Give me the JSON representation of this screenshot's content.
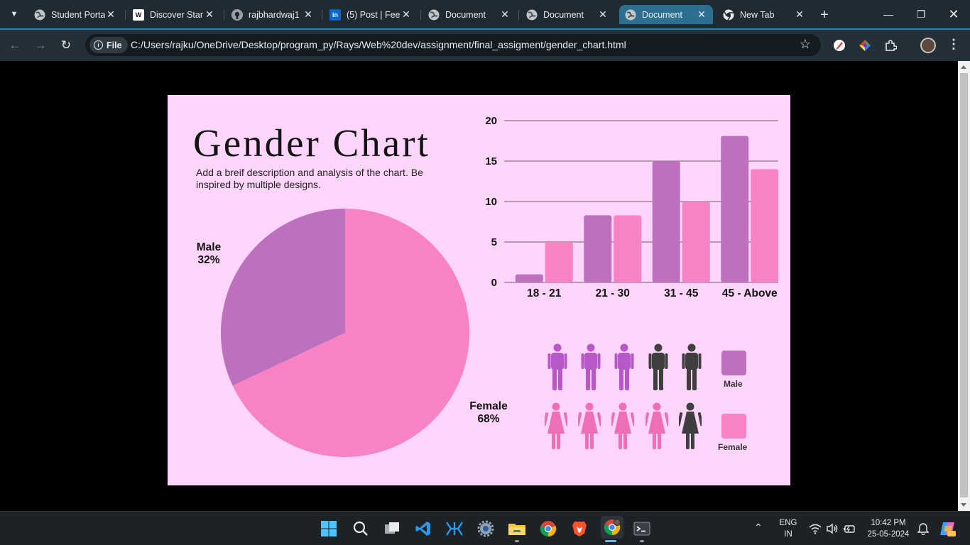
{
  "browser": {
    "tabs": [
      {
        "title": "Student Porta",
        "favicon": "globe-icon",
        "active": false
      },
      {
        "title": "Discover Star",
        "favicon": "W",
        "active": false
      },
      {
        "title": "rajbhardwaj1",
        "favicon": "github-icon",
        "active": false
      },
      {
        "title": "(5) Post | Fee",
        "favicon": "in",
        "active": false
      },
      {
        "title": "Document",
        "favicon": "globe-icon",
        "active": false
      },
      {
        "title": "Document",
        "favicon": "globe-icon",
        "active": false
      },
      {
        "title": "Document",
        "favicon": "globe-icon",
        "active": true
      },
      {
        "title": "New Tab",
        "favicon": "chrome-icon",
        "active": false
      }
    ],
    "address": {
      "chip_label": "File",
      "url": "C:/Users/rajku/OneDrive/Desktop/program_py/Rays/Web%20dev/assignment/final_assigment/gender_chart.html"
    },
    "colors": {
      "tabstrip": "#1f2a33",
      "active_tab": "#2c6f8e",
      "toolbar": "#243038"
    }
  },
  "page": {
    "title": "Gender Chart",
    "description": "Add a breif description and analysis of the chart. Be inspired by multiple designs.",
    "pie_labels": {
      "male_name": "Male",
      "male_pct": "32%",
      "female_name": "Female",
      "female_pct": "68%"
    },
    "legend": {
      "male": "Male",
      "female": "Female"
    },
    "pictogram": {
      "male_highlighted": 3,
      "male_total": 5,
      "female_highlighted": 4,
      "female_total": 5
    },
    "colors": {
      "background": "#ffd5fb",
      "male": "#bd70bb",
      "female": "#f783c5",
      "male_icon": "#b757c9",
      "female_icon": "#ef6fb7",
      "neutral_icon": "#3f3f3f"
    }
  },
  "chart_data": [
    {
      "type": "pie",
      "labels": [
        "Male",
        "Female"
      ],
      "values": [
        32,
        68
      ]
    },
    {
      "type": "bar",
      "categories": [
        "18 - 21",
        "21 - 30",
        "31 - 45",
        "45 - Above"
      ],
      "series": [
        {
          "values": [
            1,
            8.3,
            15,
            18.1
          ]
        },
        {
          "values": [
            5,
            8.3,
            10,
            14
          ]
        }
      ],
      "yticks": [
        "0",
        "5",
        "10",
        "15",
        "20"
      ],
      "ylim": [
        0,
        20
      ],
      "grid": true
    }
  ],
  "taskbar": {
    "icons": [
      "windows-start-icon",
      "search-icon",
      "task-view-icon",
      "vscode-icon",
      "kiro-icon",
      "settings-icon",
      "file-explorer-icon",
      "chrome-icon",
      "brave-icon",
      "chrome-profile-icon",
      "terminal-icon"
    ],
    "lang_top": "ENG",
    "lang_bottom": "IN",
    "time": "10:42 PM",
    "date": "25-05-2024"
  }
}
